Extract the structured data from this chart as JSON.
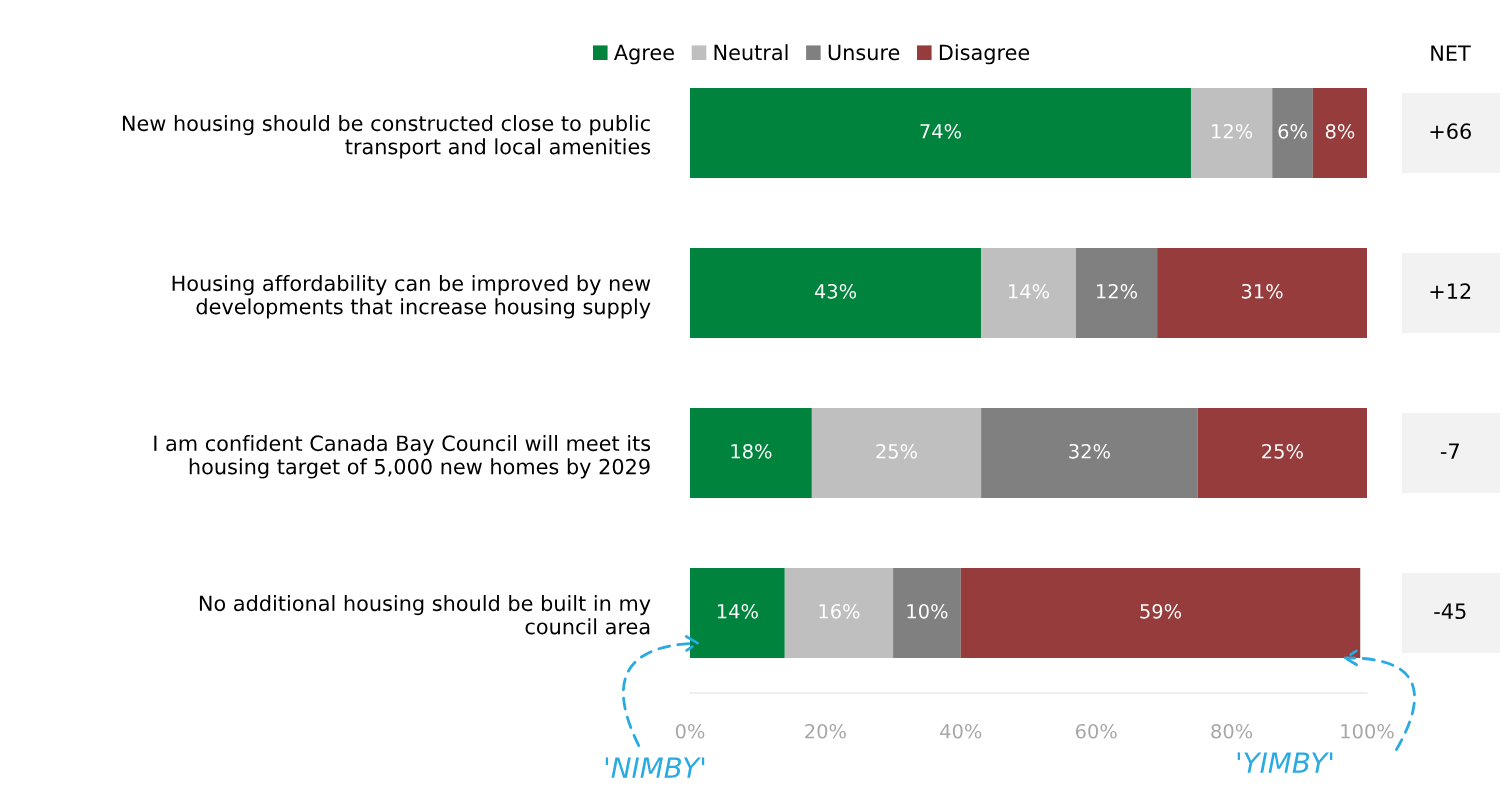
{
  "chart_data": {
    "type": "bar",
    "orientation": "horizontal",
    "stacked": true,
    "categories": [
      "New housing should be constructed close to public\ntransport and local amenities",
      "Housing affordability can be improved by new\ndevelopments that increase housing supply",
      "I am confident Canada Bay Council will meet its\nhousing target of 5,000 new homes by 2029",
      "No additional housing should be built in my\ncouncil area"
    ],
    "series": [
      {
        "name": "Agree",
        "color": "#00843d",
        "values": [
          74,
          43,
          18,
          14
        ]
      },
      {
        "name": "Neutral",
        "color": "#bfbfbf",
        "values": [
          12,
          14,
          25,
          16
        ]
      },
      {
        "name": "Unsure",
        "color": "#808080",
        "values": [
          6,
          12,
          32,
          10
        ]
      },
      {
        "name": "Disagree",
        "color": "#963c3c",
        "values": [
          8,
          31,
          25,
          59
        ]
      }
    ],
    "xlim": [
      0,
      100
    ],
    "xticks": [
      {
        "value": 0,
        "label": "0%"
      },
      {
        "value": 20,
        "label": "20%"
      },
      {
        "value": 40,
        "label": "40%"
      },
      {
        "value": 60,
        "label": "60%"
      },
      {
        "value": 80,
        "label": "80%"
      },
      {
        "value": 100,
        "label": "100%"
      }
    ],
    "value_labels": [
      [
        "74%",
        "43%",
        "18%",
        "14%"
      ],
      [
        "12%",
        "14%",
        "25%",
        "16%"
      ],
      [
        "6%",
        "12%",
        "32%",
        "10%"
      ],
      [
        "8%",
        "31%",
        "25%",
        "59%"
      ]
    ],
    "legend": "top",
    "grid": false,
    "annotations": [
      "NET",
      "+66",
      "+12",
      "-7",
      "-45",
      "'NIMBY'",
      "'YIMBY'"
    ]
  }
}
